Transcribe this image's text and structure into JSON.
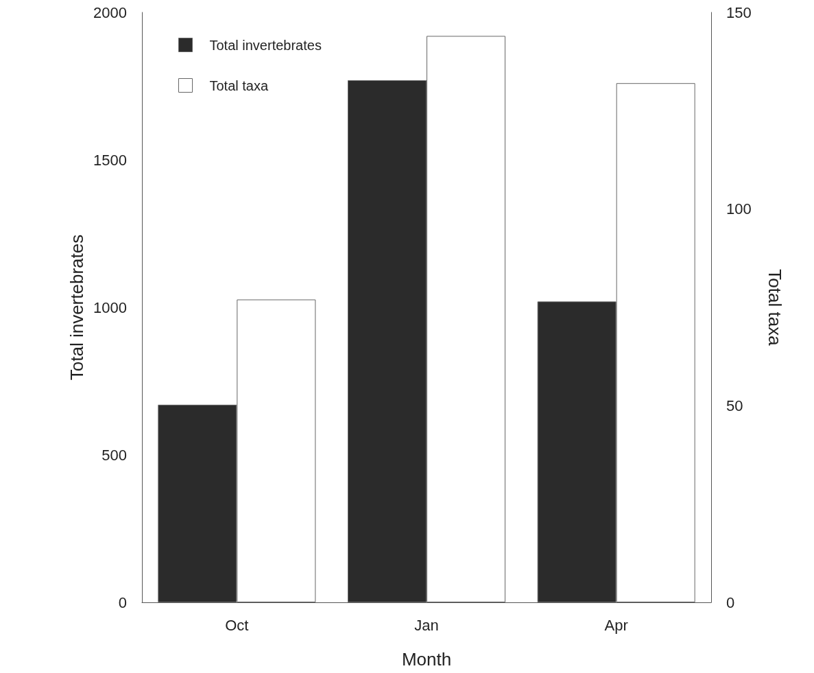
{
  "chart_data": {
    "type": "bar",
    "xlabel": "Month",
    "ylabel": "Total invertebrates",
    "y2label": "Total taxa",
    "categories": [
      "Oct",
      "Jan",
      "Apr"
    ],
    "series": [
      {
        "name": "Total invertebrates",
        "color": "#2b2b2b",
        "values": [
          670,
          1770,
          1020
        ]
      },
      {
        "name": "Total taxa",
        "color": "#ffffff",
        "values": [
          77,
          144,
          132
        ],
        "axis": "y2"
      }
    ],
    "ylim": [
      0,
      2000
    ],
    "yticks": [
      0,
      500,
      1000,
      1500,
      2000
    ],
    "y2lim": [
      0,
      150
    ],
    "y2ticks": [
      0,
      50,
      100,
      150
    ],
    "grid": false,
    "legend": "top left"
  }
}
